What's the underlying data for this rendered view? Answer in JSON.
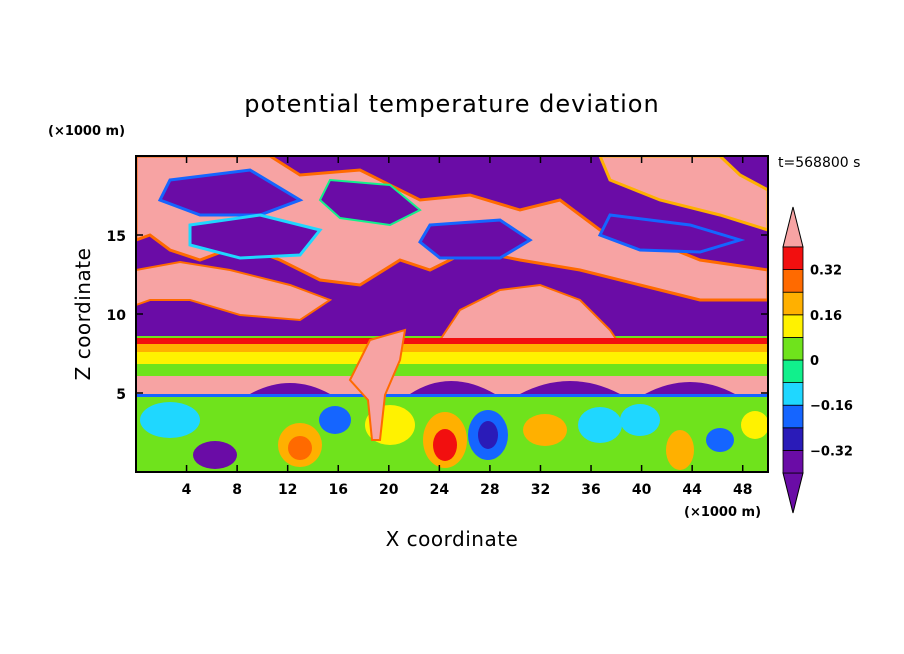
{
  "chart_data": {
    "type": "heatmap",
    "title": "potential temperature deviation",
    "xlabel": "X coordinate",
    "ylabel": "Z coordinate",
    "x_unit": "(×1000 m)",
    "y_unit": "(×1000 m)",
    "time_label": "t=568800 s",
    "xlim": [
      0,
      50
    ],
    "ylim": [
      0,
      20
    ],
    "x_ticks": [
      4,
      8,
      12,
      16,
      20,
      24,
      28,
      32,
      36,
      40,
      44,
      48
    ],
    "y_ticks": [
      5,
      10,
      15
    ],
    "colorbar": {
      "levels": [
        -0.4,
        -0.32,
        -0.24,
        -0.16,
        -0.08,
        0,
        0.08,
        0.16,
        0.24,
        0.32,
        0.4
      ],
      "colors": [
        "#6a0ca6",
        "#2a1bb8",
        "#1565ff",
        "#1fd7ff",
        "#11f08c",
        "#6fe31c",
        "#fff200",
        "#ffb000",
        "#ff6a00",
        "#f20f0f"
      ],
      "under_color": "#6a0ca6",
      "over_color": "#f7a3a3",
      "tick_labels": [
        "0.32",
        "0.16",
        "0",
        "−0.16",
        "−0.32"
      ],
      "tick_values": [
        0.32,
        0.16,
        0,
        -0.16,
        -0.32
      ]
    }
  }
}
